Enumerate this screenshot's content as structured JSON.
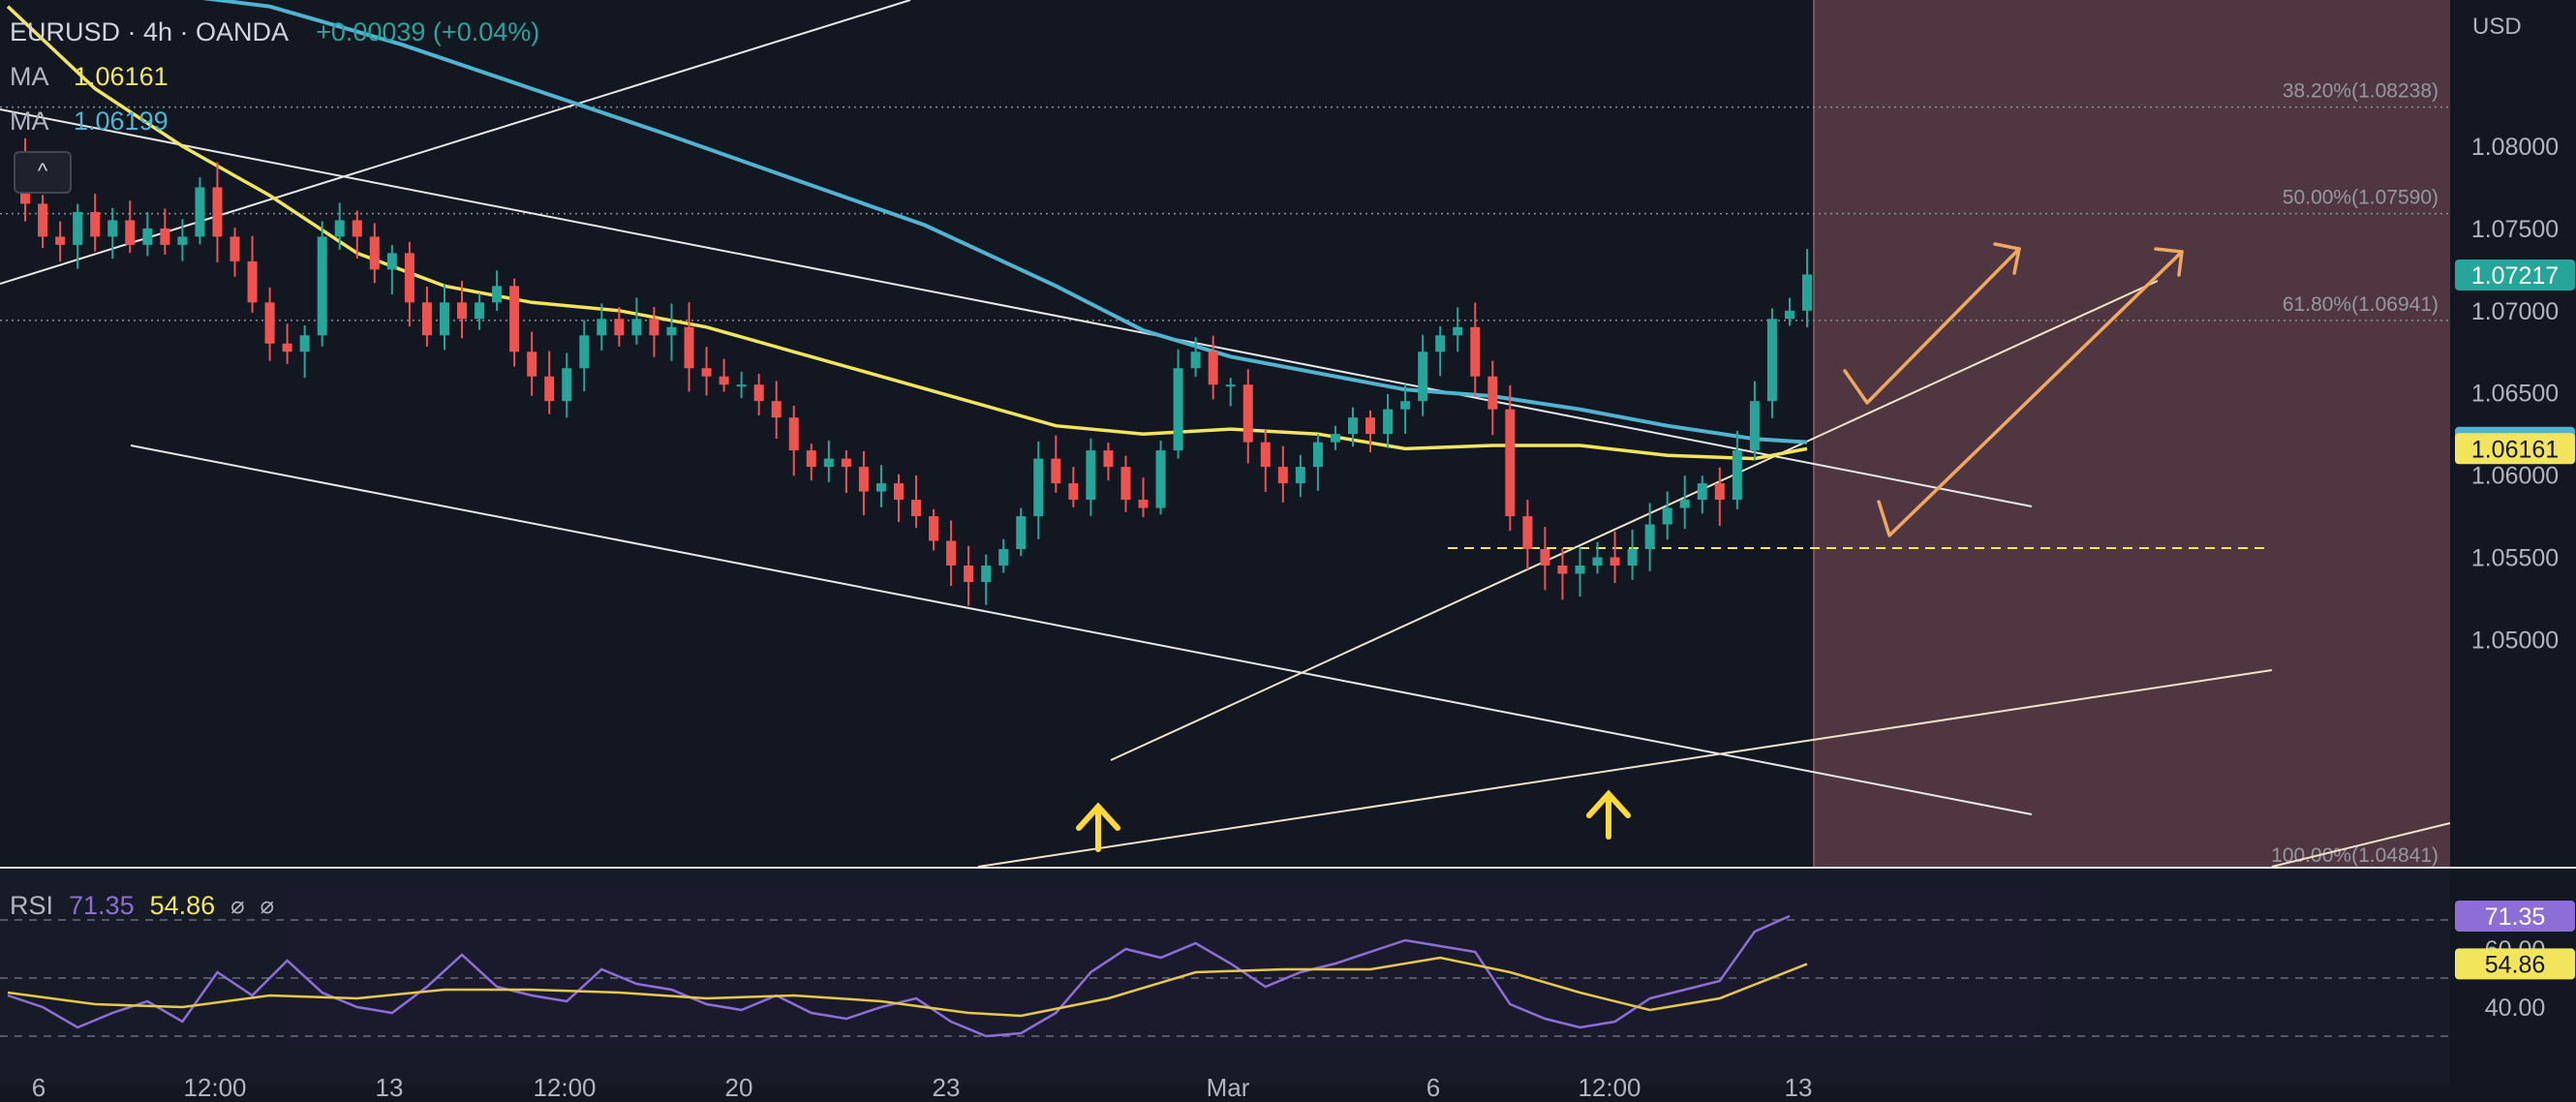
{
  "legend": {
    "title": "EURUSD · 4h · OANDA",
    "change": "+0.00039 (+0.04%)",
    "ma1_label": "MA",
    "ma1_value": "1.06161",
    "ma2_label": "MA",
    "ma2_value": "1.06199",
    "toggle_glyph": "^"
  },
  "rsi_legend": {
    "label": "RSI",
    "value1": "71.35",
    "value2": "54.86",
    "sym1": "⌀",
    "sym2": "⌀"
  },
  "colors": {
    "background": "#131722",
    "bull": "#26a69a",
    "bear": "#ef5350",
    "ma_fast": "#f2e55c",
    "ma_slow": "#4fb3d1",
    "rsi": "#8c6ed6",
    "rsi_ma": "#e6c94a",
    "projection": "#f0a860",
    "fib_zone": "#5a3c45"
  },
  "chart_data": {
    "type": "candlestick",
    "symbol": "EURUSD",
    "timeframe": "4h",
    "currency_label": "USD",
    "ylim": [
      1.0465,
      1.0905
    ],
    "y_ticks": [
      "1.08000",
      "1.07500",
      "1.07000",
      "1.06500",
      "1.06000",
      "1.05500",
      "1.05000"
    ],
    "x_ticks": [
      "6",
      "12:00",
      "13",
      "12:00",
      "20",
      "23",
      "Mar",
      "6",
      "12:00",
      "13"
    ],
    "price_labels": {
      "last": "1.07217",
      "ma_slow": "1.06199",
      "ma_fast": "1.06161"
    },
    "fib_levels": [
      {
        "label": "38.20%(1.08238)",
        "price": 1.08238
      },
      {
        "label": "50.00%(1.07590)",
        "price": 1.0759
      },
      {
        "label": "61.80%(1.06941)",
        "price": 1.06941
      },
      {
        "label": "100.00%(1.04841)",
        "price": 1.04841
      }
    ],
    "price_path": [
      [
        0,
        1.0795
      ],
      [
        2,
        1.0765
      ],
      [
        4,
        1.0745
      ],
      [
        6,
        1.074
      ],
      [
        8,
        1.076
      ],
      [
        10,
        1.0745
      ],
      [
        12,
        1.0755
      ],
      [
        14,
        1.074
      ],
      [
        16,
        1.075
      ],
      [
        18,
        1.074
      ],
      [
        20,
        1.0745
      ],
      [
        22,
        1.0775
      ],
      [
        24,
        1.0745
      ],
      [
        26,
        1.073
      ],
      [
        28,
        1.0705
      ],
      [
        30,
        1.068
      ],
      [
        32,
        1.0675
      ],
      [
        34,
        1.0685
      ],
      [
        36,
        1.0745
      ],
      [
        38,
        1.0755
      ],
      [
        40,
        1.0745
      ],
      [
        42,
        1.0725
      ],
      [
        44,
        1.0735
      ],
      [
        46,
        1.0705
      ],
      [
        48,
        1.0685
      ],
      [
        50,
        1.0705
      ],
      [
        52,
        1.0695
      ],
      [
        54,
        1.0705
      ],
      [
        56,
        1.0715
      ],
      [
        58,
        1.0675
      ],
      [
        60,
        1.066
      ],
      [
        62,
        1.0645
      ],
      [
        64,
        1.0665
      ],
      [
        66,
        1.0685
      ],
      [
        68,
        1.0695
      ],
      [
        70,
        1.0685
      ],
      [
        72,
        1.0695
      ],
      [
        74,
        1.0685
      ],
      [
        76,
        1.069
      ],
      [
        78,
        1.0665
      ],
      [
        80,
        1.066
      ],
      [
        82,
        1.0655
      ],
      [
        84,
        1.0655
      ],
      [
        86,
        1.0645
      ],
      [
        88,
        1.0635
      ],
      [
        90,
        1.0615
      ],
      [
        92,
        1.0605
      ],
      [
        94,
        1.061
      ],
      [
        96,
        1.0605
      ],
      [
        98,
        1.059
      ],
      [
        100,
        1.0595
      ],
      [
        102,
        1.0585
      ],
      [
        104,
        1.0575
      ],
      [
        106,
        1.056
      ],
      [
        108,
        1.0545
      ],
      [
        110,
        1.0535
      ],
      [
        112,
        1.0545
      ],
      [
        114,
        1.0555
      ],
      [
        116,
        1.0575
      ],
      [
        118,
        1.061
      ],
      [
        120,
        1.0595
      ],
      [
        122,
        1.0585
      ],
      [
        124,
        1.0615
      ],
      [
        126,
        1.0605
      ],
      [
        128,
        1.0585
      ],
      [
        130,
        1.058
      ],
      [
        132,
        1.0615
      ],
      [
        134,
        1.0665
      ],
      [
        136,
        1.0675
      ],
      [
        138,
        1.0655
      ],
      [
        140,
        1.0655
      ],
      [
        142,
        1.062
      ],
      [
        144,
        1.0605
      ],
      [
        146,
        1.0595
      ],
      [
        148,
        1.0605
      ],
      [
        150,
        1.062
      ],
      [
        152,
        1.0625
      ],
      [
        154,
        1.0635
      ],
      [
        156,
        1.0625
      ],
      [
        158,
        1.064
      ],
      [
        160,
        1.0645
      ],
      [
        162,
        1.0675
      ],
      [
        164,
        1.0685
      ],
      [
        166,
        1.069
      ],
      [
        168,
        1.066
      ],
      [
        170,
        1.064
      ],
      [
        172,
        1.0575
      ],
      [
        174,
        1.0555
      ],
      [
        176,
        1.0545
      ],
      [
        178,
        1.054
      ],
      [
        180,
        1.0545
      ],
      [
        182,
        1.055
      ],
      [
        184,
        1.0545
      ],
      [
        186,
        1.0555
      ],
      [
        188,
        1.057
      ],
      [
        190,
        1.058
      ],
      [
        192,
        1.0585
      ],
      [
        194,
        1.0595
      ],
      [
        196,
        1.0585
      ],
      [
        198,
        1.0615
      ],
      [
        200,
        1.0645
      ],
      [
        202,
        1.0695
      ],
      [
        204,
        1.07
      ],
      [
        206,
        1.0722
      ]
    ],
    "ma_fast_path": [
      [
        0,
        1.0885
      ],
      [
        10,
        1.0835
      ],
      [
        20,
        1.08
      ],
      [
        30,
        1.077
      ],
      [
        40,
        1.0735
      ],
      [
        50,
        1.0715
      ],
      [
        60,
        1.0705
      ],
      [
        70,
        1.07
      ],
      [
        80,
        1.069
      ],
      [
        90,
        1.0675
      ],
      [
        100,
        1.066
      ],
      [
        110,
        1.0645
      ],
      [
        120,
        1.063
      ],
      [
        130,
        1.0625
      ],
      [
        140,
        1.0628
      ],
      [
        150,
        1.0625
      ],
      [
        160,
        1.0616
      ],
      [
        170,
        1.0618
      ],
      [
        180,
        1.0618
      ],
      [
        190,
        1.0612
      ],
      [
        200,
        1.061
      ],
      [
        206,
        1.0616
      ]
    ],
    "ma_slow_path": [
      [
        0,
        1.0898
      ],
      [
        15,
        1.0895
      ],
      [
        30,
        1.0885
      ],
      [
        45,
        1.0862
      ],
      [
        60,
        1.0835
      ],
      [
        75,
        1.0808
      ],
      [
        90,
        1.078
      ],
      [
        105,
        1.0752
      ],
      [
        120,
        1.0715
      ],
      [
        130,
        1.0688
      ],
      [
        140,
        1.0672
      ],
      [
        150,
        1.0662
      ],
      [
        160,
        1.0652
      ],
      [
        170,
        1.0648
      ],
      [
        180,
        1.064
      ],
      [
        190,
        1.063
      ],
      [
        200,
        1.0622
      ],
      [
        206,
        1.062
      ]
    ],
    "rsi_ylim": [
      20,
      80
    ],
    "rsi_ticks": [
      "60.00",
      "40.00"
    ],
    "rsi_last": "71.35",
    "rsi_ma_last": "54.86",
    "rsi_path": [
      [
        0,
        44
      ],
      [
        4,
        40
      ],
      [
        8,
        33
      ],
      [
        12,
        38
      ],
      [
        16,
        42
      ],
      [
        20,
        35
      ],
      [
        24,
        52
      ],
      [
        28,
        44
      ],
      [
        32,
        56
      ],
      [
        36,
        45
      ],
      [
        40,
        40
      ],
      [
        44,
        38
      ],
      [
        48,
        47
      ],
      [
        52,
        58
      ],
      [
        56,
        47
      ],
      [
        60,
        44
      ],
      [
        64,
        42
      ],
      [
        68,
        53
      ],
      [
        72,
        48
      ],
      [
        76,
        46
      ],
      [
        80,
        41
      ],
      [
        84,
        39
      ],
      [
        88,
        44
      ],
      [
        92,
        38
      ],
      [
        96,
        36
      ],
      [
        100,
        40
      ],
      [
        104,
        43
      ],
      [
        108,
        35
      ],
      [
        112,
        30
      ],
      [
        116,
        31
      ],
      [
        120,
        38
      ],
      [
        124,
        52
      ],
      [
        128,
        60
      ],
      [
        132,
        57
      ],
      [
        136,
        62
      ],
      [
        140,
        55
      ],
      [
        144,
        47
      ],
      [
        148,
        52
      ],
      [
        152,
        55
      ],
      [
        156,
        59
      ],
      [
        160,
        63
      ],
      [
        164,
        61
      ],
      [
        168,
        59
      ],
      [
        172,
        41
      ],
      [
        176,
        36
      ],
      [
        180,
        33
      ],
      [
        184,
        35
      ],
      [
        188,
        43
      ],
      [
        192,
        46
      ],
      [
        196,
        49
      ],
      [
        200,
        66
      ],
      [
        204,
        71.35
      ]
    ],
    "rsi_ma_path": [
      [
        0,
        45
      ],
      [
        10,
        41
      ],
      [
        20,
        40
      ],
      [
        30,
        44
      ],
      [
        40,
        43
      ],
      [
        50,
        46
      ],
      [
        60,
        46
      ],
      [
        70,
        45
      ],
      [
        80,
        43
      ],
      [
        90,
        44
      ],
      [
        100,
        42
      ],
      [
        110,
        38
      ],
      [
        116,
        37
      ],
      [
        126,
        43
      ],
      [
        136,
        52
      ],
      [
        146,
        53
      ],
      [
        156,
        53
      ],
      [
        164,
        57
      ],
      [
        172,
        52
      ],
      [
        180,
        45
      ],
      [
        188,
        39
      ],
      [
        196,
        43
      ],
      [
        206,
        54.86
      ]
    ]
  }
}
